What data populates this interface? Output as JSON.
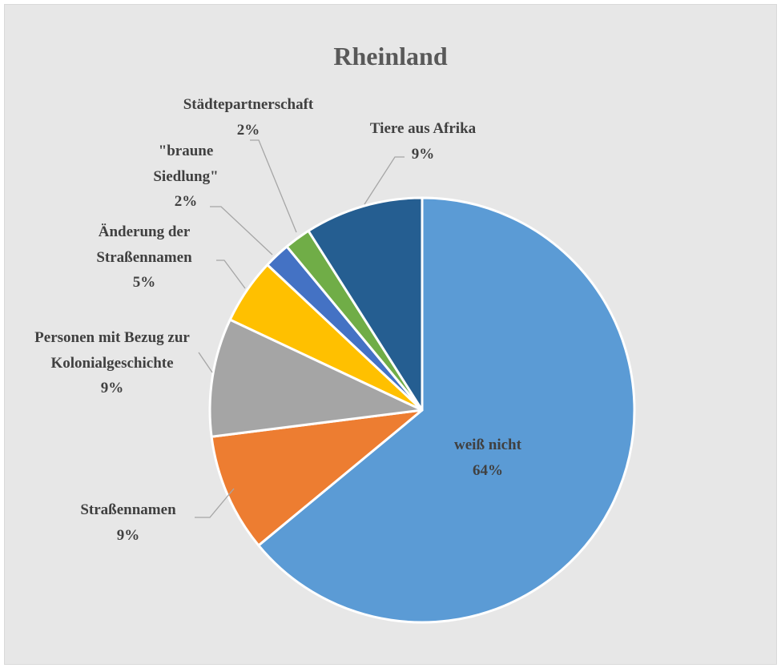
{
  "chart_data": {
    "type": "pie",
    "title": "Rheinland",
    "categories": [
      "weiß nicht",
      "Straßennamen",
      "Personen mit Bezug zur Kolonialgeschichte",
      "Änderung der Straßennamen",
      "\"braune Siedlung\"",
      "Städtepartnerschaft",
      "Tiere aus Afrika"
    ],
    "values": [
      64,
      9,
      9,
      5,
      2,
      2,
      9
    ],
    "value_labels": [
      "64%",
      "9%",
      "9%",
      "5%",
      "2%",
      "2%",
      "9%"
    ],
    "colors": [
      "#5b9bd5",
      "#ed7d31",
      "#a5a5a5",
      "#ffc000",
      "#4472c4",
      "#70ad47",
      "#255e91"
    ]
  }
}
